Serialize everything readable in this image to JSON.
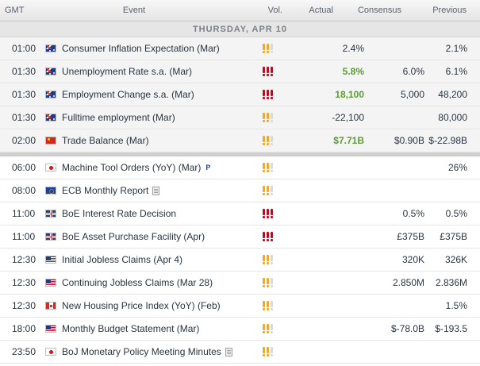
{
  "header": {
    "gmt": "GMT",
    "event": "Event",
    "vol": "Vol.",
    "actual": "Actual",
    "consensus": "Consensus",
    "previous": "Previous"
  },
  "day_label": "THURSDAY, APR 10",
  "rows": [
    {
      "time": "01:00",
      "flag": "au",
      "event": "Consumer Inflation Expectation (Mar)",
      "vol": 2,
      "actual": "2.4%",
      "actual_highlight": false,
      "consensus": "",
      "previous": "2.1%",
      "extra": ""
    },
    {
      "time": "01:30",
      "flag": "au",
      "event": "Unemployment Rate s.a. (Mar)",
      "vol": 3,
      "actual": "5.8%",
      "actual_highlight": true,
      "consensus": "6.0%",
      "previous": "6.1%",
      "extra": ""
    },
    {
      "time": "01:30",
      "flag": "au",
      "event": "Employment Change s.a. (Mar)",
      "vol": 3,
      "actual": "18,100",
      "actual_highlight": true,
      "consensus": "5,000",
      "previous": "48,200",
      "extra": ""
    },
    {
      "time": "01:30",
      "flag": "au",
      "event": "Fulltime employment (Mar)",
      "vol": 2,
      "actual": "-22,100",
      "actual_highlight": false,
      "consensus": "",
      "previous": "80,000",
      "extra": ""
    },
    {
      "time": "02:00",
      "flag": "cn",
      "event": "Trade Balance (Mar)",
      "vol": 2,
      "actual": "$7.71B",
      "actual_highlight": true,
      "consensus": "$0.90B",
      "previous": "$-22.98B",
      "extra": ""
    },
    {
      "time": "06:00",
      "flag": "jp",
      "event": "Machine Tool Orders (YoY) (Mar)",
      "vol": 2,
      "actual": "",
      "actual_highlight": false,
      "consensus": "",
      "previous": "26%",
      "extra": "P"
    },
    {
      "time": "08:00",
      "flag": "eu",
      "event": "ECB Monthly Report",
      "vol": 2,
      "actual": "",
      "actual_highlight": false,
      "consensus": "",
      "previous": "",
      "extra": "doc"
    },
    {
      "time": "11:00",
      "flag": "uk",
      "event": "BoE Interest Rate Decision",
      "vol": 3,
      "actual": "",
      "actual_highlight": false,
      "consensus": "0.5%",
      "previous": "0.5%",
      "extra": ""
    },
    {
      "time": "11:00",
      "flag": "uk",
      "event": "BoE Asset Purchase Facility (Apr)",
      "vol": 3,
      "actual": "",
      "actual_highlight": false,
      "consensus": "£375B",
      "previous": "£375B",
      "extra": ""
    },
    {
      "time": "12:30",
      "flag": "us",
      "event": "Initial Jobless Claims (Apr 4)",
      "vol": 2,
      "actual": "",
      "actual_highlight": false,
      "consensus": "320K",
      "previous": "326K",
      "extra": ""
    },
    {
      "time": "12:30",
      "flag": "us",
      "event": "Continuing Jobless Claims (Mar 28)",
      "vol": 2,
      "actual": "",
      "actual_highlight": false,
      "consensus": "2.850M",
      "previous": "2.836M",
      "extra": ""
    },
    {
      "time": "12:30",
      "flag": "ca",
      "event": "New Housing Price Index (YoY) (Feb)",
      "vol": 2,
      "actual": "",
      "actual_highlight": false,
      "consensus": "",
      "previous": "1.5%",
      "extra": ""
    },
    {
      "time": "18:00",
      "flag": "us",
      "event": "Monthly Budget Statement (Mar)",
      "vol": 2,
      "actual": "",
      "actual_highlight": false,
      "consensus": "$-78.0B",
      "previous": "$-193.5",
      "extra": ""
    },
    {
      "time": "23:50",
      "flag": "jp",
      "event": "BoJ Monetary Policy Meeting Minutes",
      "vol": 2,
      "actual": "",
      "actual_highlight": false,
      "consensus": "",
      "previous": "",
      "extra": "doc"
    }
  ],
  "separator_after_index": 4,
  "colors": {
    "vol_medium": "#f5a623",
    "vol_high": "#d0021b",
    "vol_off": "#d9d9d9",
    "actual_positive": "#5a9e2e"
  }
}
